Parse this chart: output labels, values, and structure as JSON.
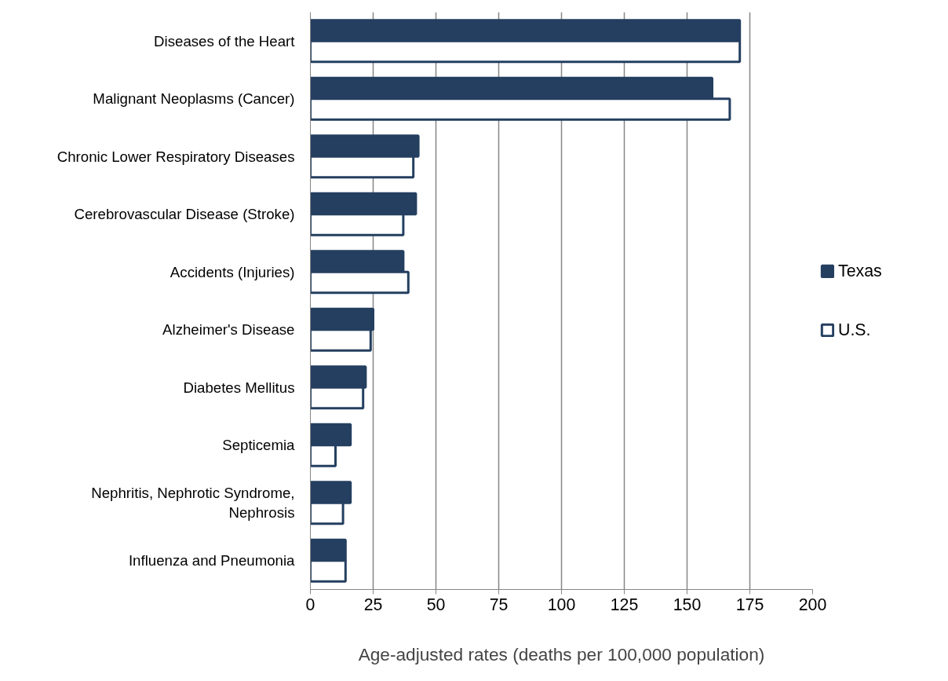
{
  "chart_data": {
    "type": "bar",
    "orientation": "horizontal",
    "xlabel": "Age-adjusted rates (deaths per 100,000 population)",
    "categories": [
      "Diseases of the Heart",
      "Malignant Neoplasms (Cancer)",
      "Chronic Lower Respiratory Diseases",
      "Cerebrovascular Disease (Stroke)",
      "Accidents (Injuries)",
      "Alzheimer's Disease",
      "Diabetes Mellitus",
      "Septicemia",
      "Nephritis, Nephrotic Syndrome,\nNephrosis",
      "Influenza and Pneumonia"
    ],
    "series": [
      {
        "name": "Texas",
        "color": "#243f60",
        "values": [
          171,
          160,
          43,
          42,
          37,
          25,
          22,
          16,
          16,
          14
        ]
      },
      {
        "name": "U.S.",
        "color": "#ffffff",
        "values": [
          171,
          167,
          41,
          37,
          39,
          24,
          21,
          10,
          13,
          14
        ]
      }
    ],
    "xlim": [
      0,
      200
    ],
    "xticks": [
      0,
      25,
      50,
      75,
      100,
      125,
      150,
      175,
      200
    ],
    "grid": "x",
    "legend": "right"
  }
}
